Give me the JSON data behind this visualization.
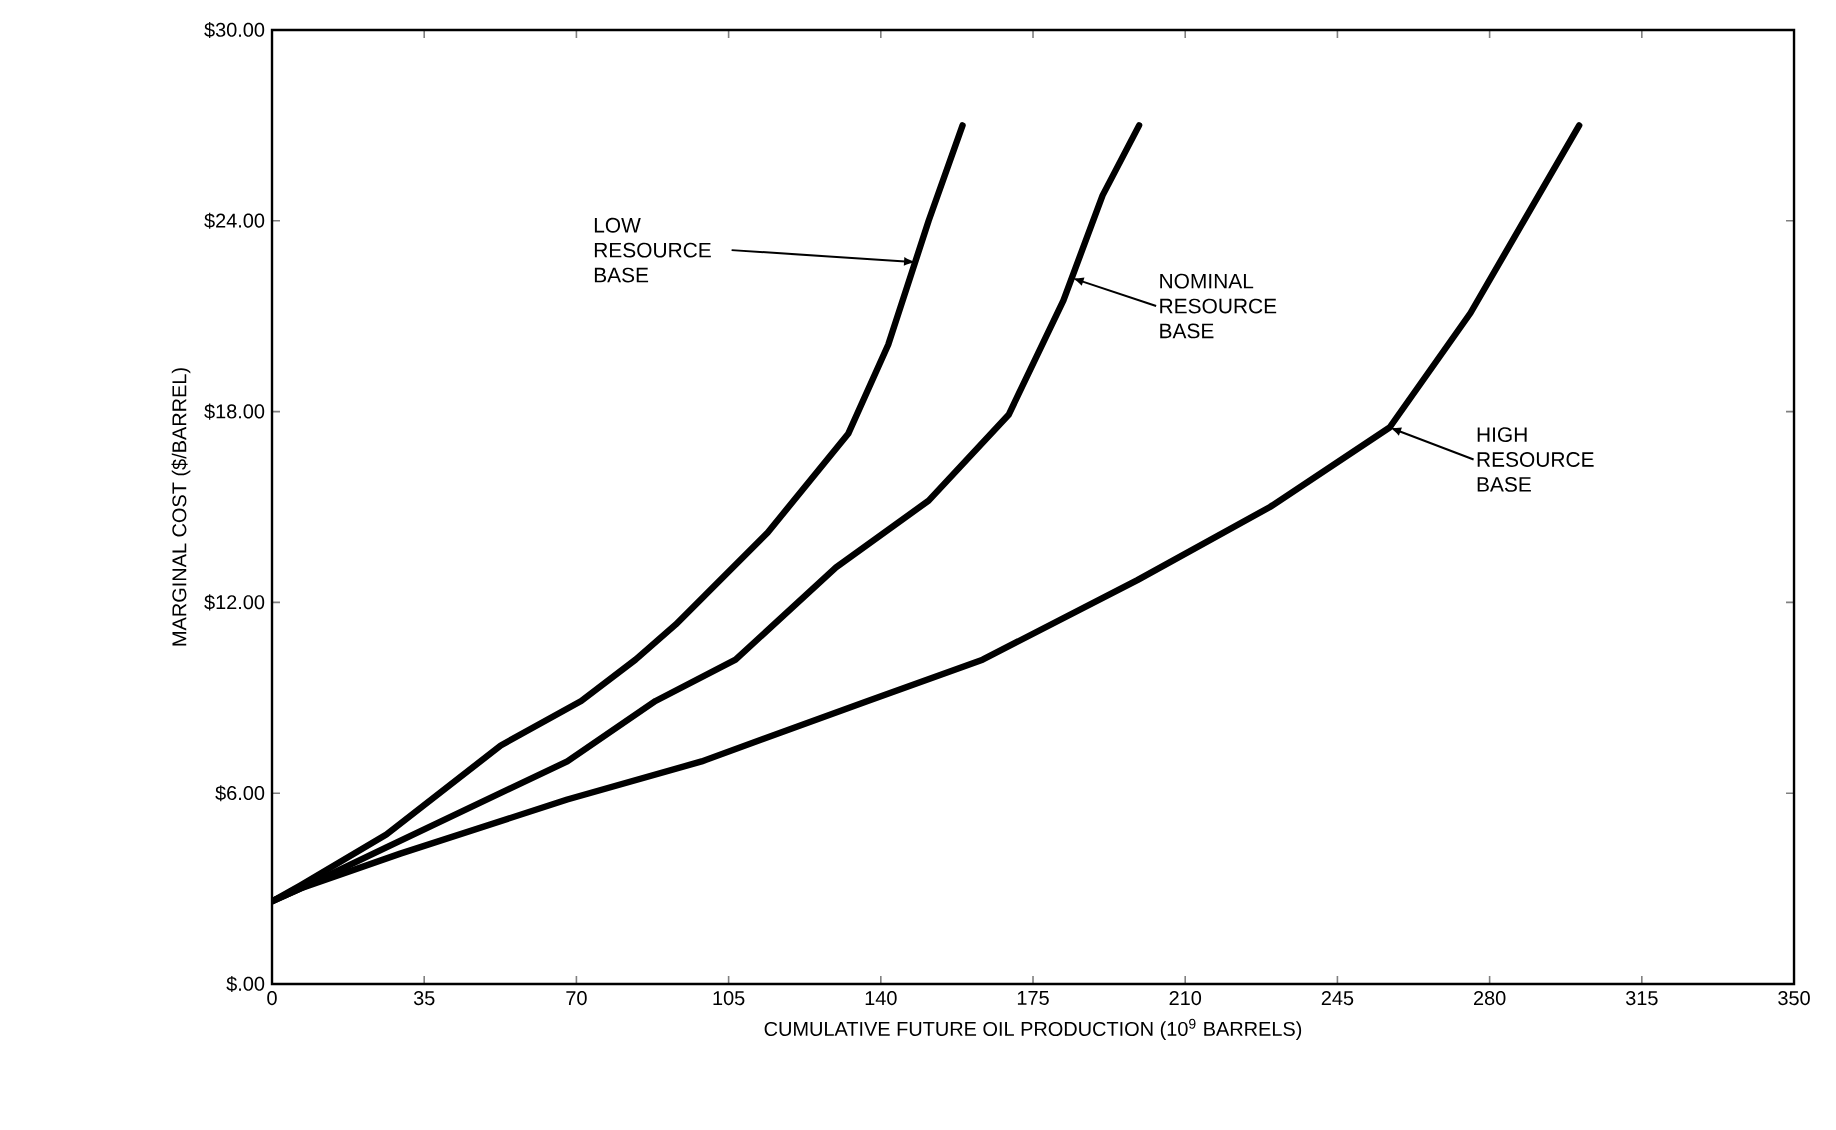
{
  "chart_data": {
    "type": "line",
    "xlabel": "CUMULATIVE FUTURE OIL PRODUCTION (10$^{9}$ BARRELS)",
    "ylabel": "MARGINAL COST ($/BARREL)",
    "xlim": [
      0,
      350
    ],
    "ylim": [
      0,
      30
    ],
    "xticks": [
      0,
      35,
      70,
      105,
      140,
      175,
      210,
      245,
      280,
      315,
      350
    ],
    "yticks": [
      {
        "value": 0,
        "label": "$.00"
      },
      {
        "value": 6,
        "label": "$6.00"
      },
      {
        "value": 12,
        "label": "$12.00"
      },
      {
        "value": 18,
        "label": "$18.00"
      },
      {
        "value": 24,
        "label": "$24.00"
      },
      {
        "value": 30,
        "label": "$30.00"
      }
    ],
    "grid": false,
    "marker": "none",
    "line_style": "solid",
    "series": [
      {
        "color": "#000000",
        "x": [
          0,
          6.5,
          26.3,
          52.6,
          71.1,
          83.6,
          92.8,
          114,
          132.5,
          141.7,
          151,
          158.8
        ],
        "values": [
          2.6,
          3.1,
          4.7,
          7.5,
          8.9,
          10.2,
          11.3,
          14.2,
          17.3,
          20.1,
          24.0,
          27.0
        ]
      },
      {
        "color": "#000000",
        "x": [
          0,
          6.5,
          26.3,
          67.9,
          88.2,
          106.6,
          129.7,
          151,
          169.4,
          182,
          191,
          199.4
        ],
        "values": [
          2.6,
          3.0,
          4.3,
          7.0,
          8.9,
          10.2,
          13.1,
          15.2,
          17.9,
          21.5,
          24.8,
          27.0
        ]
      },
      {
        "color": "#000000",
        "x": [
          0,
          6.5,
          29.5,
          67.9,
          98.8,
          137,
          163.4,
          199,
          229.5,
          257,
          275.6,
          300.6
        ],
        "values": [
          2.6,
          3.0,
          4.1,
          5.8,
          7.0,
          8.9,
          10.2,
          12.7,
          15.0,
          17.5,
          21.1,
          27.0
        ]
      }
    ],
    "annotations": [
      {
        "text": "LOW RESOURCE BASE",
        "x": 148,
        "y": 22.7
      },
      {
        "text": "NOMINAL RESOURCE BASE",
        "x": 184,
        "y": 22.2
      },
      {
        "text": "HIGH RESOURCE BASE",
        "x": 257,
        "y": 17.5
      }
    ]
  }
}
